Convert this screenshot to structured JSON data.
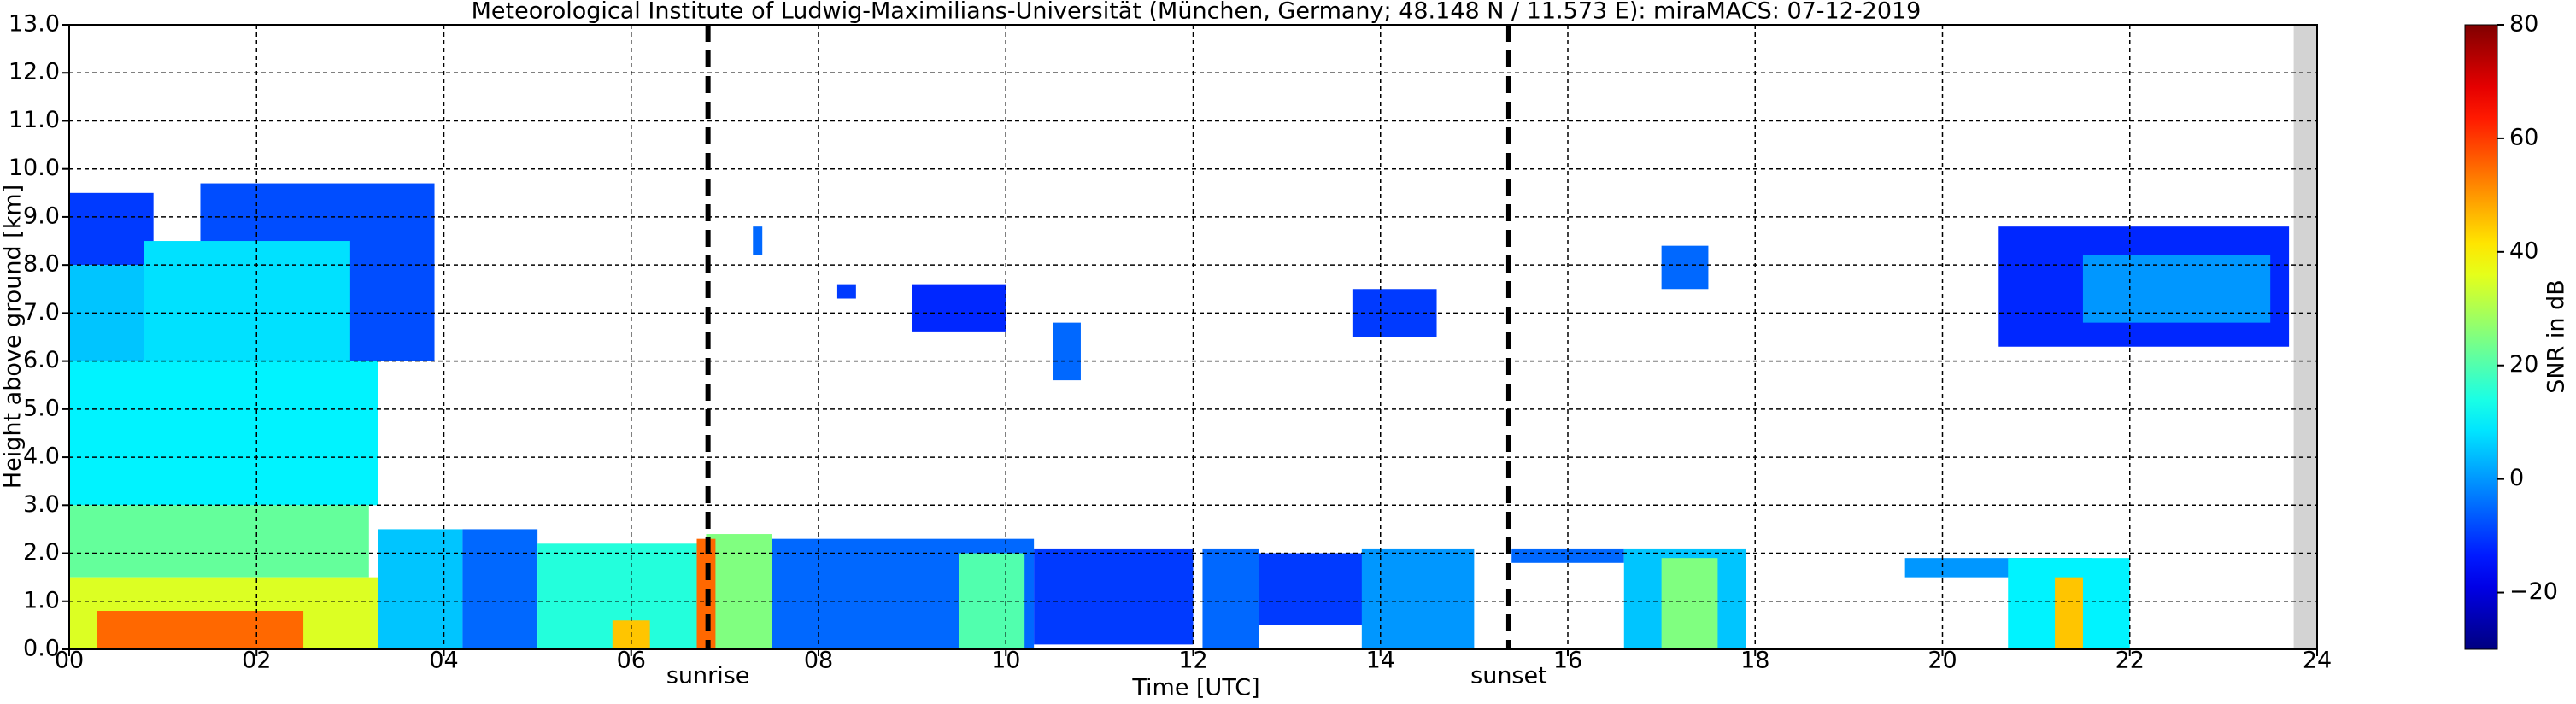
{
  "chart_data": {
    "type": "time-height",
    "title": "Meteorological Institute of Ludwig-Maximilians-Universität (München, Germany; 48.148 N / 11.573 E):    miraMACS: 07-12-2019",
    "x_label": "Time [UTC]",
    "y_label": "Height above ground [km]",
    "colorbar_label": "SNR in dB",
    "xlim": [
      0,
      24
    ],
    "ylim": [
      0,
      13
    ],
    "clim": [
      -30,
      80
    ],
    "colormap": "jet",
    "grid": true,
    "xticks": [
      {
        "value": 0,
        "label": "00"
      },
      {
        "value": 2,
        "label": "02"
      },
      {
        "value": 4,
        "label": "04"
      },
      {
        "value": 6,
        "label": "06"
      },
      {
        "value": 8,
        "label": "08"
      },
      {
        "value": 10,
        "label": "10"
      },
      {
        "value": 12,
        "label": "12"
      },
      {
        "value": 14,
        "label": "14"
      },
      {
        "value": 16,
        "label": "16"
      },
      {
        "value": 18,
        "label": "18"
      },
      {
        "value": 20,
        "label": "20"
      },
      {
        "value": 22,
        "label": "22"
      },
      {
        "value": 24,
        "label": "24"
      }
    ],
    "yticks": [
      {
        "value": 0,
        "label": "0.0"
      },
      {
        "value": 1,
        "label": "1.0"
      },
      {
        "value": 2,
        "label": "2.0"
      },
      {
        "value": 3,
        "label": "3.0"
      },
      {
        "value": 4,
        "label": "4.0"
      },
      {
        "value": 5,
        "label": "5.0"
      },
      {
        "value": 6,
        "label": "6.0"
      },
      {
        "value": 7,
        "label": "7.0"
      },
      {
        "value": 8,
        "label": "8.0"
      },
      {
        "value": 9,
        "label": "9.0"
      },
      {
        "value": 10,
        "label": "10.0"
      },
      {
        "value": 11,
        "label": "11.0"
      },
      {
        "value": 12,
        "label": "12.0"
      },
      {
        "value": 13,
        "label": "13.0"
      }
    ],
    "cticks": [
      {
        "value": -20,
        "label": "−20"
      },
      0,
      20,
      40,
      60,
      80
    ],
    "vlines": [
      {
        "x": 6.82,
        "label": "sunrise"
      },
      {
        "x": 15.37,
        "label": "sunset"
      }
    ],
    "no_data": [
      23.75,
      24
    ],
    "cells": [
      [
        0,
        0.9,
        8,
        9.5,
        -10
      ],
      [
        1.4,
        3.9,
        6,
        9.7,
        -8
      ],
      [
        0,
        0.8,
        5.5,
        8,
        5
      ],
      [
        0.8,
        3.0,
        6,
        8.5,
        8
      ],
      [
        0,
        3.3,
        3,
        6,
        10
      ],
      [
        0,
        3.2,
        1.5,
        3,
        22
      ],
      [
        0,
        3.3,
        0,
        1.5,
        35
      ],
      [
        0.3,
        2.5,
        0,
        0.8,
        55
      ],
      [
        3.3,
        4.2,
        0,
        2.5,
        5
      ],
      [
        4.2,
        5,
        0,
        2.5,
        -5
      ],
      [
        5,
        6.8,
        0,
        2.2,
        15
      ],
      [
        5.8,
        6.2,
        0,
        0.6,
        45
      ],
      [
        6.8,
        7.5,
        0,
        2.4,
        25
      ],
      [
        6.7,
        6.9,
        0,
        2.3,
        55
      ],
      [
        7.5,
        10.3,
        0,
        2.3,
        -5
      ],
      [
        9.5,
        10.2,
        0,
        2.0,
        20
      ],
      [
        10.3,
        12,
        0.1,
        2.1,
        -10
      ],
      [
        12.1,
        12.7,
        0,
        2.1,
        -5
      ],
      [
        12.7,
        14.2,
        0.5,
        2.0,
        -10
      ],
      [
        13.8,
        15.0,
        0,
        2.1,
        0
      ],
      [
        15.4,
        16.6,
        1.8,
        2.1,
        -5
      ],
      [
        16.6,
        17.9,
        0,
        2.1,
        5
      ],
      [
        17.0,
        17.6,
        0,
        1.9,
        25
      ],
      [
        19.6,
        21.6,
        1.5,
        1.9,
        0
      ],
      [
        20.7,
        22,
        0,
        1.9,
        10
      ],
      [
        21.2,
        21.5,
        0,
        1.5,
        45
      ],
      [
        7.3,
        7.4,
        8.2,
        8.8,
        -5
      ],
      [
        8.2,
        8.4,
        7.3,
        7.6,
        -10
      ],
      [
        9,
        10,
        6.6,
        7.6,
        -12
      ],
      [
        10.5,
        10.8,
        5.6,
        6.8,
        -5
      ],
      [
        13.7,
        14.6,
        6.5,
        7.5,
        -10
      ],
      [
        17.0,
        17.5,
        7.5,
        8.4,
        -5
      ],
      [
        20.6,
        23.7,
        6.3,
        8.8,
        -12
      ],
      [
        21.5,
        23.5,
        6.8,
        8.2,
        0
      ]
    ]
  }
}
